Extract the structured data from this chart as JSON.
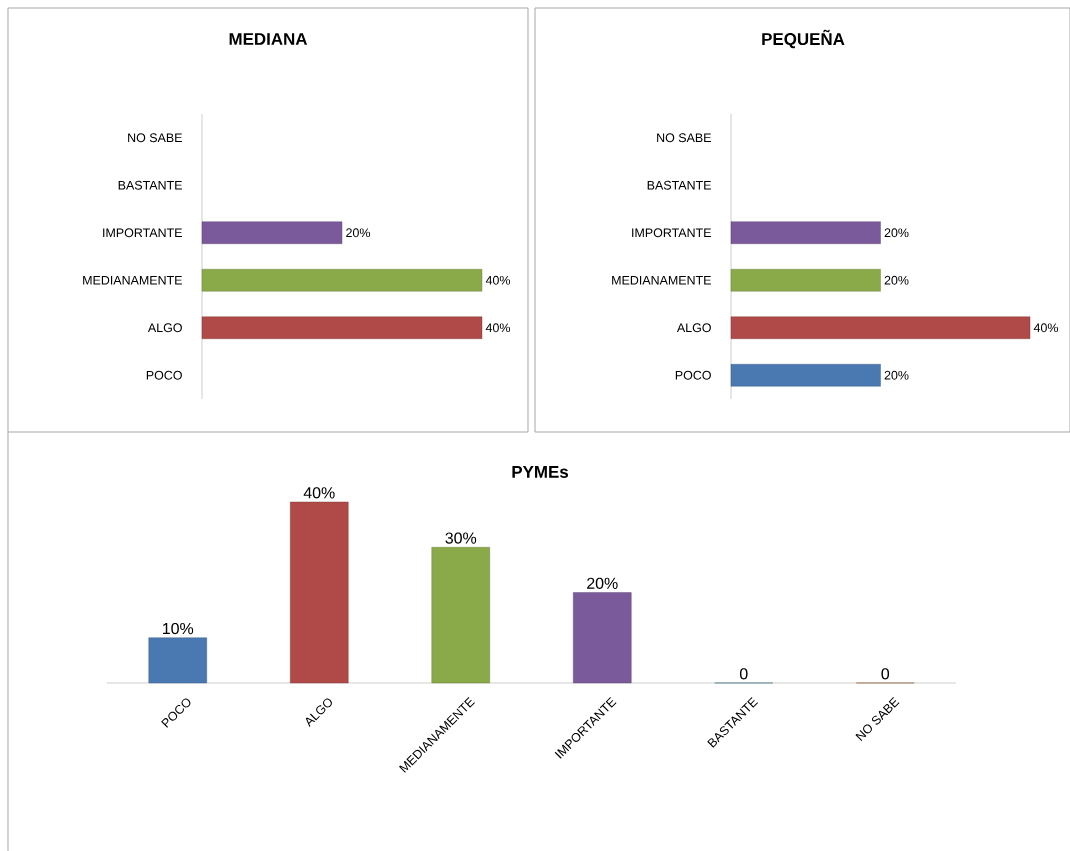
{
  "chart_data": [
    {
      "type": "bar",
      "orientation": "horizontal",
      "title": "MEDIANA",
      "categories": [
        "NO SABE",
        "BASTANTE",
        "IMPORTANTE",
        "MEDIANAMENTE",
        "ALGO",
        "POCO"
      ],
      "values": [
        null,
        null,
        20,
        40,
        40,
        null
      ],
      "colors": [
        "#c0692a",
        "#31859c",
        "#7a5a9a",
        "#8aaa4a",
        "#b04a48",
        "#4a78b0"
      ],
      "value_labels": [
        null,
        null,
        "20%",
        "40%",
        "40%",
        null
      ]
    },
    {
      "type": "bar",
      "orientation": "horizontal",
      "title": "PEQUEÑA",
      "categories": [
        "NO SABE",
        "BASTANTE",
        "IMPORTANTE",
        "MEDIANAMENTE",
        "ALGO",
        "POCO"
      ],
      "values": [
        null,
        null,
        20,
        20,
        40,
        20
      ],
      "colors": [
        "#c0692a",
        "#31859c",
        "#7a5a9a",
        "#8aaa4a",
        "#b04a48",
        "#4a78b0"
      ],
      "value_labels": [
        null,
        null,
        "20%",
        "20%",
        "40%",
        "20%"
      ]
    },
    {
      "type": "bar",
      "title": "PYMEs",
      "categories": [
        "POCO",
        "ALGO",
        "MEDIANAMENTE",
        "IMPORTANTE",
        "BASTANTE",
        "NO SABE"
      ],
      "values": [
        10,
        40,
        30,
        20,
        0,
        0
      ],
      "colors": [
        "#4a78b0",
        "#b04a48",
        "#8aaa4a",
        "#7a5a9a",
        "#31859c",
        "#c0692a"
      ],
      "value_labels": [
        "10%",
        "40%",
        "30%",
        "20%",
        "0",
        "0"
      ]
    }
  ]
}
